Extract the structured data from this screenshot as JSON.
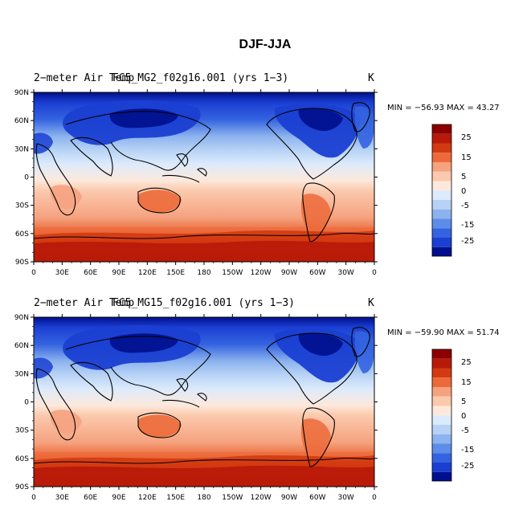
{
  "main_title": "DJF-JJA",
  "colorbar_levels": [
    "25",
    "15",
    "5",
    "0",
    "-5",
    "-15",
    "-25"
  ],
  "colors": {
    "deep_red": "#8b0000",
    "red": "#b81a0a",
    "red2": "#d33a12",
    "orange": "#ec6a3a",
    "salmon": "#f5a27f",
    "peach": "#fbc9ad",
    "cream": "#fde9dc",
    "pale_blue": "#dbeafc",
    "light_blue": "#b7d2f5",
    "blue1": "#8cb3ee",
    "blue2": "#5c8de8",
    "blue3": "#3463e0",
    "blue4": "#1a3fd2",
    "navy": "#000f8c",
    "land": "#000000"
  },
  "panels": [
    {
      "left_title": "2−meter Air Temp",
      "center_title": "FC5_MG2_f02g16.001 (yrs 1−3)",
      "units": "K",
      "stats": "MIN = −56.93 MAX =  43.27",
      "lat_ticks": [
        "90N",
        "60N",
        "30N",
        "0",
        "30S",
        "60S",
        "90S"
      ],
      "lon_ticks": [
        "0",
        "30E",
        "60E",
        "90E",
        "120E",
        "150E",
        "180",
        "150W",
        "120W",
        "90W",
        "60W",
        "30W",
        "0"
      ]
    },
    {
      "left_title": "2−meter Air Temp",
      "center_title": "FC5_MG15_f02g16.001 (yrs 1−3)",
      "units": "K",
      "stats": "MIN = −59.90 MAX =  51.74",
      "lat_ticks": [
        "90N",
        "60N",
        "30N",
        "0",
        "30S",
        "60S",
        "90S"
      ],
      "lon_ticks": [
        "0",
        "30E",
        "60E",
        "90E",
        "120E",
        "150E",
        "180",
        "150W",
        "120W",
        "90W",
        "60W",
        "30W",
        "0"
      ]
    }
  ]
}
